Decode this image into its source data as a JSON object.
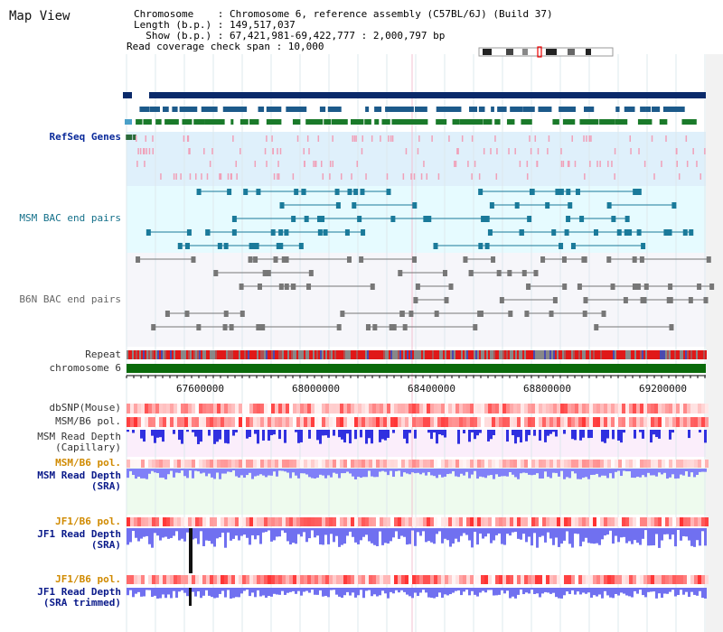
{
  "header": {
    "map_view": "Map View",
    "chromosome_line": "Chromosome    : Chromosome 6, reference assembly (C57BL/6J) (Build 37)",
    "length_line": "Length (b.p.) : 149,517,037",
    "show_line": "  Show (b.p.) : 67,421,981-69,422,777 : 2,000,797 bp",
    "coverage_line": "Read coverage check span : 10,000"
  },
  "tracks": {
    "refseq": "RefSeq Genes",
    "msm_bac": "MSM BAC end pairs",
    "b6n_bac": "B6N BAC end pairs",
    "repeat": "Repeat",
    "chromosome": "chromosome 6",
    "dbsnp": "dbSNP(Mouse)",
    "msm_b6_pol_1": "MSM/B6 pol.",
    "msm_read_depth_cap": "MSM Read Depth\n (Capillary)",
    "msm_b6_pol_2": "MSM/B6 pol.",
    "msm_read_depth_sra": "MSM Read Depth\n (SRA)",
    "jf1_b6_pol_1": "JF1/B6 pol.",
    "jf1_read_depth_sra": "JF1 Read Depth\n (SRA)",
    "jf1_b6_pol_2": "JF1/B6 pol.",
    "jf1_read_depth_trim": "JF1 Read Depth\n (SRA trimmed)"
  },
  "ruler": {
    "ticks": [
      "67600000",
      "68000000",
      "68400000",
      "68800000",
      "69200000"
    ]
  },
  "colors": {
    "navy": "#0a2a6a",
    "refseq_bg": "#dff0fb",
    "msm_bg": "#e6fbff",
    "b6n_bg": "#f6f6fa",
    "chrom_green": "#0a6a0a",
    "depth_blue": "#7070ff",
    "pol_red": "#e83030",
    "capillary_bg": "#fbeefb",
    "sra_bg": "#eefbee"
  }
}
